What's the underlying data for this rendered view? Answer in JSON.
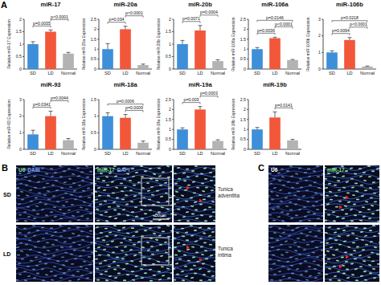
{
  "panel_a_label": "A",
  "chart_data": [
    {
      "type": "bar",
      "title": "miR-17",
      "y_label": "Relative miR-17 Expression",
      "categories": [
        "SD",
        "LD",
        "Normal"
      ],
      "values": [
        1.0,
        1.5,
        0.62
      ],
      "errors": [
        0.1,
        0.07,
        0.05
      ],
      "colors": [
        "#3d8fd9",
        "#f2573a",
        "#b3b3b3"
      ],
      "ylim": [
        0,
        2
      ],
      "yticks": [
        0,
        0.5,
        1,
        1.5,
        2
      ],
      "annotations": [
        {
          "text": "p=0.0035",
          "between": [
            "SD",
            "LD"
          ]
        },
        {
          "text": "p<0.0001",
          "between": [
            "LD",
            "Normal"
          ]
        }
      ]
    },
    {
      "type": "bar",
      "title": "miR-20a",
      "y_label": "Relative miR-20a Expression",
      "categories": [
        "SD",
        "LD",
        "Normal"
      ],
      "values": [
        1.0,
        2.0,
        0.2
      ],
      "errors": [
        0.28,
        0.15,
        0.05
      ],
      "colors": [
        "#3d8fd9",
        "#f2573a",
        "#b3b3b3"
      ],
      "ylim": [
        0,
        2.5
      ],
      "yticks": [
        0,
        0.5,
        1,
        1.5,
        2,
        2.5
      ],
      "annotations": [
        {
          "text": "p=0.034",
          "between": [
            "SD",
            "LD"
          ]
        },
        {
          "text": "p<0.0001",
          "between": [
            "LD",
            "Normal"
          ]
        }
      ]
    },
    {
      "type": "bar",
      "title": "miR-20b",
      "y_label": "Relative miR-20b Expression",
      "categories": [
        "SD",
        "LD",
        "Normal"
      ],
      "values": [
        1.0,
        1.55,
        0.32
      ],
      "errors": [
        0.15,
        0.2,
        0.05
      ],
      "colors": [
        "#3d8fd9",
        "#f2573a",
        "#b3b3b3"
      ],
      "ylim": [
        0,
        2
      ],
      "yticks": [
        0,
        0.5,
        1,
        1.5,
        2
      ],
      "annotations": [
        {
          "text": "p=0.0071",
          "between": [
            "SD",
            "LD"
          ]
        },
        {
          "text": "p=0.0004",
          "between": [
            "LD",
            "Normal"
          ]
        }
      ]
    },
    {
      "type": "bar",
      "title": "miR-106a",
      "y_label": "Relative miR-106a Expression",
      "categories": [
        "SD",
        "LD",
        "Normal"
      ],
      "values": [
        1.0,
        1.55,
        0.45
      ],
      "errors": [
        0.08,
        0.05,
        0.03
      ],
      "colors": [
        "#3d8fd9",
        "#f2573a",
        "#b3b3b3"
      ],
      "ylim": [
        0,
        2.5
      ],
      "yticks": [
        0,
        0.5,
        1,
        1.5,
        2,
        2.5
      ],
      "annotations": [
        {
          "text": "p=0.0036",
          "between": [
            "SD",
            "LD"
          ]
        },
        {
          "text": "p<0.0001",
          "between": [
            "LD",
            "Normal"
          ]
        },
        {
          "text": "p=0.0146",
          "between": [
            "SD",
            "Normal"
          ]
        }
      ]
    },
    {
      "type": "bar",
      "title": "miR-106b",
      "y_label": "Relative miR-106b Expression",
      "categories": [
        "SD",
        "LD",
        "Normal"
      ],
      "values": [
        1.0,
        1.75,
        0.15
      ],
      "errors": [
        0.1,
        0.15,
        0.03
      ],
      "colors": [
        "#3d8fd9",
        "#f2573a",
        "#b3b3b3"
      ],
      "ylim": [
        0,
        3
      ],
      "yticks": [
        0,
        1,
        2,
        3
      ],
      "annotations": [
        {
          "text": "p=0.0094",
          "between": [
            "SD",
            "LD"
          ]
        },
        {
          "text": "p<0.0001",
          "between": [
            "LD",
            "Normal"
          ]
        },
        {
          "text": "p=0.0218",
          "between": [
            "SD",
            "Normal"
          ]
        }
      ]
    },
    {
      "type": "bar",
      "title": "miR-93",
      "y_label": "Relative miR-93 Expression",
      "categories": [
        "SD",
        "LD",
        "Normal"
      ],
      "values": [
        0.9,
        2.0,
        0.55
      ],
      "errors": [
        0.25,
        0.3,
        0.1
      ],
      "colors": [
        "#3d8fd9",
        "#f2573a",
        "#b3b3b3"
      ],
      "ylim": [
        0,
        3
      ],
      "yticks": [
        0,
        1,
        2,
        3
      ],
      "annotations": [
        {
          "text": "p=0.0341",
          "between": [
            "SD",
            "LD"
          ]
        },
        {
          "text": "p=0.0044",
          "between": [
            "LD",
            "Normal"
          ]
        }
      ]
    },
    {
      "type": "bar",
      "title": "miR-18a",
      "y_label": "Relative miR-18a Expression",
      "categories": [
        "SD",
        "LD",
        "Normal"
      ],
      "values": [
        1.0,
        0.95,
        0.2
      ],
      "errors": [
        0.1,
        0.1,
        0.05
      ],
      "colors": [
        "#3d8fd9",
        "#f2573a",
        "#b3b3b3"
      ],
      "ylim": [
        0,
        1.5
      ],
      "yticks": [
        0,
        0.5,
        1,
        1.5
      ],
      "annotations": [
        {
          "text": "p=0.0009",
          "between": [
            "LD",
            "Normal"
          ]
        },
        {
          "text": "p=0.0006",
          "between": [
            "SD",
            "Normal"
          ]
        }
      ]
    },
    {
      "type": "bar",
      "title": "miR-19a",
      "y_label": "Relative miR-19a Expression",
      "categories": [
        "SD",
        "LD",
        "Normal"
      ],
      "values": [
        1.0,
        2.0,
        0.42
      ],
      "errors": [
        0.08,
        0.15,
        0.06
      ],
      "colors": [
        "#3d8fd9",
        "#f2573a",
        "#b3b3b3"
      ],
      "ylim": [
        0,
        2.5
      ],
      "yticks": [
        0,
        0.5,
        1,
        1.5,
        2,
        2.5
      ],
      "annotations": [
        {
          "text": "p=0.003",
          "between": [
            "SD",
            "LD"
          ]
        },
        {
          "text": "p=0.0003",
          "between": [
            "LD",
            "Normal"
          ]
        }
      ]
    },
    {
      "type": "bar",
      "title": "miR-19b",
      "y_label": "Relative miR-19b Expression",
      "categories": [
        "SD",
        "LD",
        "Normal"
      ],
      "values": [
        1.0,
        1.6,
        0.45
      ],
      "errors": [
        0.1,
        0.28,
        0.05
      ],
      "colors": [
        "#3d8fd9",
        "#f2573a",
        "#b3b3b3"
      ],
      "ylim": [
        0,
        2.5
      ],
      "yticks": [
        0,
        0.5,
        1,
        1.5,
        2,
        2.5
      ],
      "annotations": [
        {
          "text": "p=0.0141",
          "between": [
            "LD",
            "Normal"
          ]
        }
      ]
    }
  ],
  "panel_b": {
    "label": "B",
    "rows": [
      "SD",
      "LD"
    ],
    "columns": [
      {
        "parts": [
          {
            "text": "U6",
            "color": "#7ee07e"
          },
          {
            "text": "DAPI",
            "color": "#7fa8ff"
          }
        ]
      },
      {
        "parts": [
          {
            "text": "miR-17",
            "color": "#7ee07e"
          },
          {
            "text": "DAPI",
            "color": "#7fa8ff"
          }
        ]
      }
    ],
    "scale_bar": "50μm",
    "zoom_labels": [
      "Tunica adventitia",
      "Tunica intima"
    ]
  },
  "panel_c": {
    "label": "C",
    "columns": [
      {
        "parts": [
          {
            "text": "U6",
            "color": "#ffffff"
          }
        ]
      },
      {
        "parts": [
          {
            "text": "miR-17",
            "color": "#7ee07e"
          }
        ]
      }
    ]
  }
}
